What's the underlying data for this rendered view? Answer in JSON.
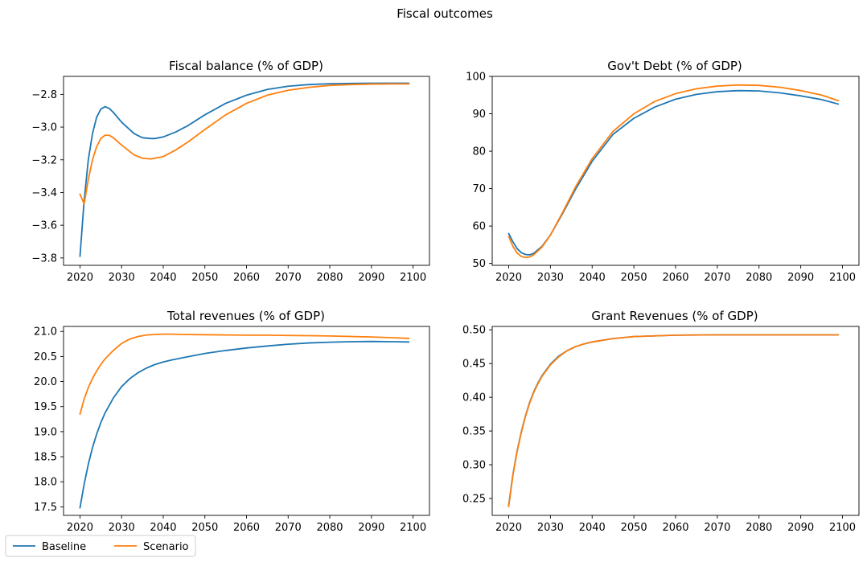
{
  "figure": {
    "title": "Fiscal outcomes",
    "legend": {
      "placement": "bottom-left",
      "entries": [
        {
          "name": "Baseline",
          "color": "#1f77b4"
        },
        {
          "name": "Scenario",
          "color": "#ff7f0e"
        }
      ]
    }
  },
  "chart_data": [
    {
      "type": "line",
      "title": "Fiscal balance (% of GDP)",
      "xlim": [
        2016.05,
        2103.95
      ],
      "ylim": [
        -3.845,
        -2.69
      ],
      "xticks": [
        2020,
        2030,
        2040,
        2050,
        2060,
        2070,
        2080,
        2090,
        2100
      ],
      "yticks": [
        -3.8,
        -3.6,
        -3.4,
        -3.2,
        -3.0,
        -2.8
      ],
      "ytick_labels": [
        "−3.8",
        "−3.6",
        "−3.4",
        "−3.2",
        "−3.0",
        "−2.8"
      ],
      "x": [
        2020,
        2021,
        2022,
        2023,
        2024,
        2025,
        2026,
        2027,
        2028,
        2030,
        2033,
        2035,
        2037,
        2038,
        2040,
        2043,
        2046,
        2050,
        2055,
        2060,
        2065,
        2070,
        2075,
        2080,
        2085,
        2090,
        2095,
        2099
      ],
      "series": [
        {
          "name": "Baseline",
          "color": "#1f77b4",
          "values": [
            -3.79,
            -3.45,
            -3.2,
            -3.04,
            -2.94,
            -2.89,
            -2.875,
            -2.885,
            -2.91,
            -2.97,
            -3.04,
            -3.065,
            -3.07,
            -3.07,
            -3.06,
            -3.03,
            -2.99,
            -2.925,
            -2.855,
            -2.805,
            -2.77,
            -2.75,
            -2.74,
            -2.735,
            -2.733,
            -2.732,
            -2.732,
            -2.732
          ]
        },
        {
          "name": "Scenario",
          "color": "#ff7f0e",
          "values": [
            -3.41,
            -3.47,
            -3.32,
            -3.2,
            -3.12,
            -3.07,
            -3.05,
            -3.05,
            -3.065,
            -3.11,
            -3.17,
            -3.19,
            -3.195,
            -3.19,
            -3.18,
            -3.14,
            -3.09,
            -3.015,
            -2.925,
            -2.855,
            -2.805,
            -2.775,
            -2.757,
            -2.745,
            -2.74,
            -2.737,
            -2.736,
            -2.736
          ]
        }
      ]
    },
    {
      "type": "line",
      "title": "Gov't Debt (% of GDP)",
      "xlim": [
        2016.05,
        2103.95
      ],
      "ylim": [
        49.5,
        100.0
      ],
      "xticks": [
        2020,
        2030,
        2040,
        2050,
        2060,
        2070,
        2080,
        2090,
        2100
      ],
      "yticks": [
        50,
        60,
        70,
        80,
        90,
        100
      ],
      "ytick_labels": [
        "50",
        "60",
        "70",
        "80",
        "90",
        "100"
      ],
      "x": [
        2020,
        2021,
        2022,
        2023,
        2024,
        2025,
        2026,
        2028,
        2030,
        2033,
        2036,
        2040,
        2045,
        2050,
        2055,
        2060,
        2065,
        2070,
        2075,
        2080,
        2085,
        2090,
        2095,
        2099
      ],
      "series": [
        {
          "name": "Baseline",
          "color": "#1f77b4",
          "values": [
            58.0,
            55.8,
            54.0,
            52.9,
            52.4,
            52.3,
            52.7,
            54.6,
            57.6,
            63.5,
            69.8,
            77.3,
            84.5,
            88.8,
            91.8,
            93.9,
            95.2,
            95.9,
            96.2,
            96.1,
            95.6,
            94.8,
            93.8,
            92.6
          ]
        },
        {
          "name": "Scenario",
          "color": "#ff7f0e",
          "values": [
            57.2,
            54.6,
            52.8,
            51.9,
            51.6,
            51.7,
            52.3,
            54.4,
            57.6,
            63.8,
            70.4,
            78.0,
            85.3,
            90.0,
            93.3,
            95.4,
            96.7,
            97.4,
            97.7,
            97.6,
            97.1,
            96.2,
            95.0,
            93.5
          ]
        }
      ]
    },
    {
      "type": "line",
      "title": "Total revenues (% of GDP)",
      "xlim": [
        2016.05,
        2103.95
      ],
      "ylim": [
        17.33,
        21.1
      ],
      "xticks": [
        2020,
        2030,
        2040,
        2050,
        2060,
        2070,
        2080,
        2090,
        2100
      ],
      "yticks": [
        17.5,
        18.0,
        18.5,
        19.0,
        19.5,
        20.0,
        20.5,
        21.0
      ],
      "ytick_labels": [
        "17.5",
        "18.0",
        "18.5",
        "19.0",
        "19.5",
        "20.0",
        "20.5",
        "21.0"
      ],
      "x": [
        2020,
        2021,
        2022,
        2023,
        2024,
        2025,
        2026,
        2028,
        2030,
        2032,
        2034,
        2036,
        2038,
        2040,
        2042,
        2045,
        2050,
        2055,
        2060,
        2065,
        2070,
        2075,
        2080,
        2085,
        2090,
        2095,
        2099
      ],
      "series": [
        {
          "name": "Baseline",
          "color": "#1f77b4",
          "values": [
            17.48,
            17.95,
            18.35,
            18.68,
            18.95,
            19.18,
            19.37,
            19.67,
            19.9,
            20.06,
            20.18,
            20.27,
            20.34,
            20.39,
            20.43,
            20.48,
            20.56,
            20.62,
            20.67,
            20.71,
            20.745,
            20.77,
            20.785,
            20.795,
            20.8,
            20.795,
            20.79
          ]
        },
        {
          "name": "Scenario",
          "color": "#ff7f0e",
          "values": [
            19.35,
            19.65,
            19.88,
            20.06,
            20.21,
            20.34,
            20.45,
            20.62,
            20.76,
            20.85,
            20.9,
            20.93,
            20.94,
            20.945,
            20.945,
            20.94,
            20.935,
            20.93,
            20.925,
            20.925,
            20.92,
            20.915,
            20.91,
            20.9,
            20.89,
            20.875,
            20.86
          ]
        }
      ]
    },
    {
      "type": "line",
      "title": "Grant Revenues (% of GDP)",
      "xlim": [
        2016.05,
        2103.95
      ],
      "ylim": [
        0.225,
        0.505
      ],
      "xticks": [
        2020,
        2030,
        2040,
        2050,
        2060,
        2070,
        2080,
        2090,
        2100
      ],
      "yticks": [
        0.25,
        0.3,
        0.35,
        0.4,
        0.45,
        0.5
      ],
      "ytick_labels": [
        "0.25",
        "0.30",
        "0.35",
        "0.40",
        "0.45",
        "0.50"
      ],
      "x": [
        2020,
        2021,
        2022,
        2023,
        2024,
        2025,
        2026,
        2027,
        2028,
        2030,
        2032,
        2034,
        2036,
        2038,
        2040,
        2045,
        2050,
        2055,
        2060,
        2070,
        2080,
        2090,
        2099
      ],
      "series": [
        {
          "name": "Baseline",
          "color": "#1f77b4",
          "values": [
            0.24,
            0.285,
            0.32,
            0.348,
            0.372,
            0.392,
            0.408,
            0.421,
            0.432,
            0.449,
            0.461,
            0.469,
            0.475,
            0.479,
            0.482,
            0.487,
            0.49,
            0.491,
            0.492,
            0.4925,
            0.4925,
            0.4925,
            0.4925
          ]
        },
        {
          "name": "Scenario",
          "color": "#ff7f0e",
          "values": [
            0.238,
            0.284,
            0.319,
            0.347,
            0.371,
            0.391,
            0.407,
            0.42,
            0.431,
            0.448,
            0.46,
            0.469,
            0.475,
            0.479,
            0.482,
            0.487,
            0.49,
            0.491,
            0.492,
            0.4925,
            0.4925,
            0.4925,
            0.4925
          ]
        }
      ]
    }
  ]
}
